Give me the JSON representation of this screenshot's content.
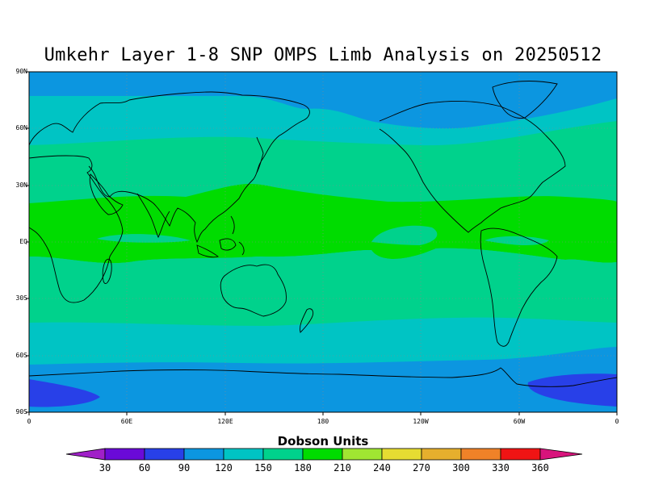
{
  "title": "Umkehr Layer 1-8 SNP OMPS Limb Analysis on 20250512",
  "latitude_labels": [
    "90N",
    "60N",
    "30N",
    "EQ",
    "30S",
    "60S",
    "90S"
  ],
  "longitude_labels": [
    "0",
    "60E",
    "120E",
    "180",
    "120W",
    "60W",
    "0"
  ],
  "colorbar": {
    "title": "Dobson Units",
    "tick_labels": [
      "30",
      "60",
      "90",
      "120",
      "150",
      "180",
      "210",
      "240",
      "270",
      "300",
      "330",
      "360"
    ],
    "colors": [
      "#a020c8",
      "#6a0ad8",
      "#2840e8",
      "#0c96e0",
      "#00c4c4",
      "#00d28c",
      "#00dc00",
      "#a0e632",
      "#e6dc32",
      "#e6af2d",
      "#f08228",
      "#f01414",
      "#d8147c"
    ]
  },
  "map": {
    "projection": "cylindrical equidistant",
    "longitude_range": [
      "0",
      "360"
    ],
    "latitude_range": [
      "90S",
      "90N"
    ],
    "field": "total ozone (Dobson Units)",
    "bands": [
      {
        "latitude": "90N-80N",
        "dobson_range": "90-120"
      },
      {
        "latitude": "80N-45N",
        "dobson_range": "120-150"
      },
      {
        "latitude": "45N-25N",
        "dobson_range": "150-180"
      },
      {
        "latitude": "25N-10S",
        "dobson_range": "180-210"
      },
      {
        "latitude": "10S-35S",
        "dobson_range": "150-180"
      },
      {
        "latitude": "35S-60S",
        "dobson_range": "120-150"
      },
      {
        "latitude": "60S-75S",
        "dobson_range": "90-120"
      },
      {
        "latitude": "75S-90S",
        "dobson_range": "60-90"
      }
    ],
    "gridlines": "dotted every 30 degrees"
  }
}
